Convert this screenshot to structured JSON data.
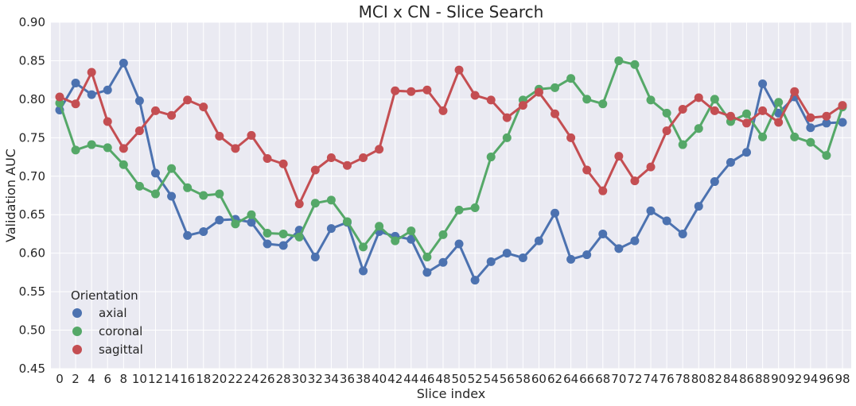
{
  "chart_data": {
    "type": "line",
    "title": "MCI x CN - Slice Search",
    "xlabel": "Slice index",
    "ylabel": "Validation AUC",
    "ylim": [
      0.45,
      0.9
    ],
    "yticks": [
      "0.45",
      "0.50",
      "0.55",
      "0.60",
      "0.65",
      "0.70",
      "0.75",
      "0.80",
      "0.85",
      "0.90"
    ],
    "x": [
      "0",
      "2",
      "4",
      "6",
      "8",
      "10",
      "12",
      "14",
      "16",
      "18",
      "20",
      "22",
      "24",
      "26",
      "28",
      "30",
      "32",
      "34",
      "36",
      "38",
      "40",
      "42",
      "44",
      "46",
      "48",
      "50",
      "52",
      "54",
      "56",
      "58",
      "60",
      "62",
      "64",
      "66",
      "68",
      "70",
      "72",
      "74",
      "76",
      "78",
      "80",
      "82",
      "84",
      "86",
      "88",
      "90",
      "92",
      "94",
      "96",
      "98"
    ],
    "grid": true,
    "legend": {
      "title": "Orientation",
      "position": "bottom-left"
    },
    "series": [
      {
        "name": "axial",
        "color": "#4c72b0",
        "values": [
          0.786,
          0.821,
          0.806,
          0.812,
          0.847,
          0.798,
          0.704,
          0.674,
          0.623,
          0.628,
          0.643,
          0.644,
          0.64,
          0.612,
          0.61,
          0.63,
          0.595,
          0.632,
          0.64,
          0.577,
          0.628,
          0.622,
          0.618,
          0.575,
          0.588,
          0.612,
          0.565,
          0.589,
          0.6,
          0.594,
          0.616,
          0.652,
          0.592,
          0.598,
          0.625,
          0.606,
          0.616,
          0.655,
          0.642,
          0.625,
          0.661,
          0.693,
          0.718,
          0.731,
          0.82,
          0.782,
          0.803,
          0.763,
          0.769,
          0.77
        ]
      },
      {
        "name": "coronal",
        "color": "#55a868",
        "values": [
          0.795,
          0.734,
          0.741,
          0.737,
          0.715,
          0.687,
          0.677,
          0.71,
          0.685,
          0.675,
          0.677,
          0.638,
          0.65,
          0.626,
          0.625,
          0.621,
          0.665,
          0.669,
          0.641,
          0.608,
          0.635,
          0.616,
          0.629,
          0.595,
          0.624,
          0.656,
          0.659,
          0.725,
          0.75,
          0.799,
          0.813,
          0.815,
          0.827,
          0.8,
          0.794,
          0.85,
          0.845,
          0.799,
          0.782,
          0.741,
          0.762,
          0.8,
          0.771,
          0.781,
          0.751,
          0.796,
          0.751,
          0.744,
          0.727,
          0.79
        ]
      },
      {
        "name": "sagittal",
        "color": "#c44e52",
        "values": [
          0.803,
          0.794,
          0.835,
          0.771,
          0.736,
          0.759,
          0.785,
          0.779,
          0.799,
          0.79,
          0.752,
          0.736,
          0.753,
          0.723,
          0.716,
          0.664,
          0.708,
          0.724,
          0.714,
          0.724,
          0.735,
          0.811,
          0.81,
          0.812,
          0.785,
          0.838,
          0.805,
          0.799,
          0.776,
          0.792,
          0.809,
          0.781,
          0.75,
          0.708,
          0.681,
          0.726,
          0.694,
          0.712,
          0.759,
          0.787,
          0.802,
          0.785,
          0.778,
          0.769,
          0.785,
          0.77,
          0.81,
          0.776,
          0.778,
          0.792
        ]
      }
    ]
  }
}
